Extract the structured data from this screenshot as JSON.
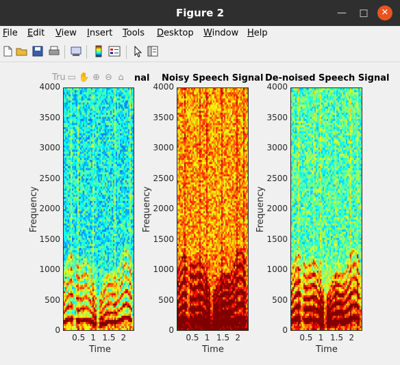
{
  "window": {
    "title": "Figure 2"
  },
  "menubar": {
    "items": [
      "File",
      "Edit",
      "View",
      "Insert",
      "Tools",
      "Desktop",
      "Window",
      "Help"
    ]
  },
  "toolbar": {
    "icons": [
      "new-figure-icon",
      "open-file-icon",
      "save-icon",
      "print-icon",
      "print-preview-icon",
      "insert-colorbar-icon",
      "insert-legend-icon",
      "pointer-icon",
      "property-inspector-icon"
    ]
  },
  "axes_toolbar": {
    "partial_title": "Tru",
    "icons": [
      "brush-icon",
      "pan-icon",
      "zoom-in-icon",
      "zoom-out-icon",
      "home-icon"
    ]
  },
  "chart_data": [
    {
      "type": "heatmap",
      "title": "Clean Speech Signal",
      "title_visible": "nal",
      "xlabel": "Time",
      "ylabel": "Frequency",
      "xticks": [
        "0.5",
        "1",
        "1.5",
        "2"
      ],
      "yticks": [
        "0",
        "500",
        "1000",
        "1500",
        "2000",
        "2500",
        "3000",
        "3500",
        "4000"
      ],
      "ylim": [
        0,
        4000
      ],
      "xlim": [
        0,
        2.35
      ],
      "colormap": "jet",
      "noise_floor": 0.38,
      "high_energy_below": 300
    },
    {
      "type": "heatmap",
      "title": "Noisy Speech Signal",
      "xlabel": "Time",
      "ylabel": "Frequency",
      "xticks": [
        "0.5",
        "1",
        "1.5",
        "2"
      ],
      "yticks": [
        "0",
        "500",
        "1000",
        "1500",
        "2000",
        "2500",
        "3000",
        "3500",
        "4000"
      ],
      "ylim": [
        0,
        4000
      ],
      "xlim": [
        0,
        2.35
      ],
      "colormap": "jet",
      "noise_floor": 0.72,
      "high_energy_below": 300
    },
    {
      "type": "heatmap",
      "title": "De-noised Speech Signal",
      "xlabel": "Time",
      "ylabel": "Frequency",
      "xticks": [
        "0.5",
        "1",
        "1.5",
        "2"
      ],
      "yticks": [
        "0",
        "500",
        "1000",
        "1500",
        "2000",
        "2500",
        "3000",
        "3500",
        "4000"
      ],
      "ylim": [
        0,
        4000
      ],
      "xlim": [
        0,
        2.35
      ],
      "colormap": "jet",
      "noise_floor": 0.45,
      "high_energy_below": 1200
    }
  ]
}
